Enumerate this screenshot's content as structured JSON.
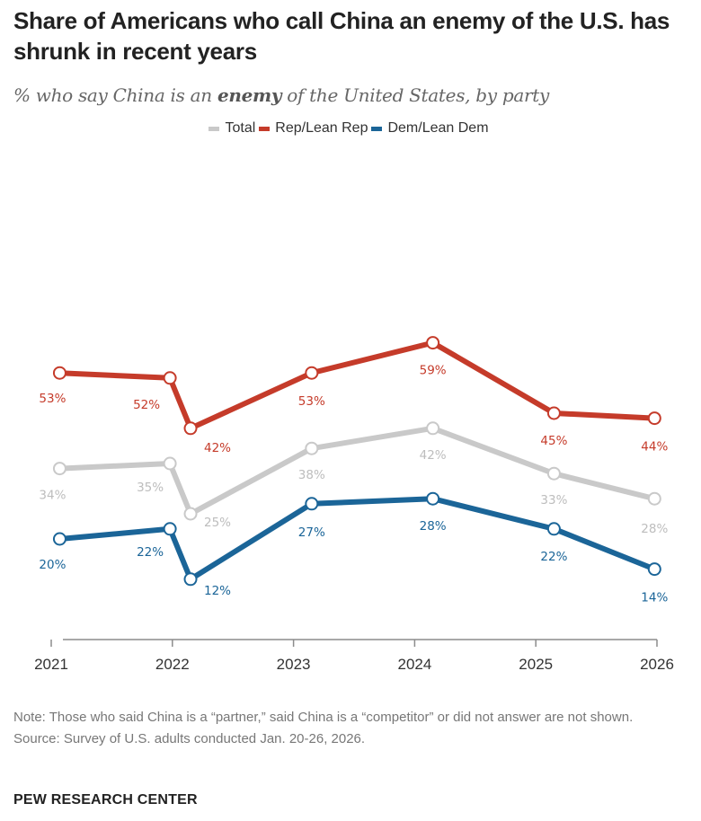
{
  "chart_data": {
    "type": "line",
    "title": "Share of Americans who call China an enemy of the U.S. has shrunk in recent years",
    "subtitle_parts": [
      "% who say China is an ",
      "enemy",
      " of the United States, by party"
    ],
    "xlabel": "",
    "ylabel": "",
    "x_ticks": [
      "2021",
      "2022",
      "2023",
      "2024",
      "2025",
      "2026"
    ],
    "x_tick_values": [
      2021,
      2022,
      2023,
      2024,
      2025,
      2026
    ],
    "xlim": [
      2021,
      2026
    ],
    "ylim": [
      0,
      70
    ],
    "grid": false,
    "legend_position": "top-center",
    "x": [
      2021.07,
      2021.98,
      2022.15,
      2023.15,
      2024.15,
      2025.15,
      2025.98
    ],
    "series": [
      {
        "name": "Total",
        "color": "#c9c9c9",
        "label_color": "#bdbdbd",
        "values": [
          34,
          35,
          25,
          38,
          42,
          33,
          28
        ],
        "labels": [
          "34%",
          "35%",
          "25%",
          "38%",
          "42%",
          "33%",
          "28%"
        ]
      },
      {
        "name": "Rep/Lean Rep",
        "color": "#c53b2a",
        "label_color": "#c53b2a",
        "values": [
          53,
          52,
          42,
          53,
          59,
          45,
          44
        ],
        "labels": [
          "53%",
          "52%",
          "42%",
          "53%",
          "59%",
          "45%",
          "44%"
        ]
      },
      {
        "name": "Dem/Lean Dem",
        "color": "#1b6598",
        "label_color": "#1b6598",
        "values": [
          20,
          22,
          12,
          27,
          28,
          22,
          14
        ],
        "labels": [
          "20%",
          "22%",
          "12%",
          "27%",
          "28%",
          "22%",
          "14%"
        ]
      }
    ]
  },
  "legend": {
    "items": [
      {
        "label": "Total",
        "color": "#c9c9c9"
      },
      {
        "label": "Rep/Lean Rep",
        "color": "#c53b2a"
      },
      {
        "label": "Dem/Lean Dem",
        "color": "#1b6598"
      }
    ]
  },
  "footer": {
    "note": "Note: Those who said China is a “partner,” said China is a “competitor” or did not answer are not shown.",
    "source": "Source: Survey of U.S. adults conducted Jan. 20-26, 2026.",
    "brand": "PEW RESEARCH CENTER"
  }
}
